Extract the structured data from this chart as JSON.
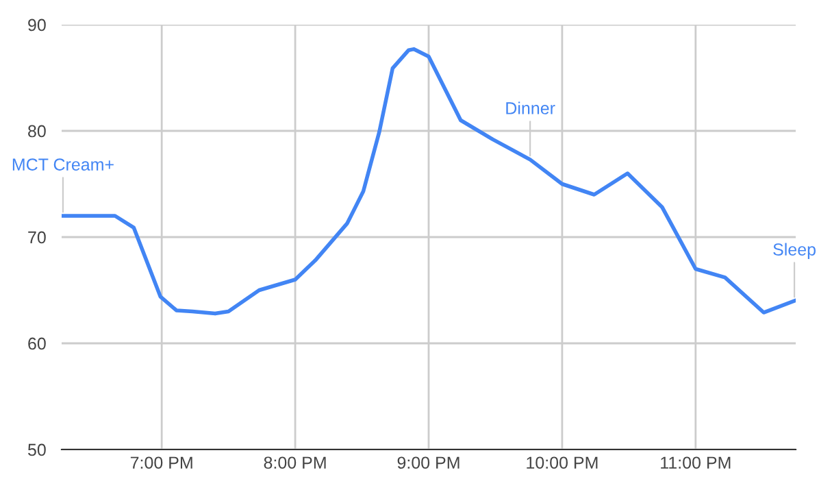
{
  "chart_data": {
    "type": "line",
    "x": [
      18.26,
      18.65,
      18.79,
      18.99,
      19.11,
      19.23,
      19.4,
      19.5,
      19.73,
      20.0,
      20.15,
      20.39,
      20.51,
      20.63,
      20.73,
      20.85,
      20.89,
      21.0,
      21.24,
      21.48,
      21.76,
      22.0,
      22.24,
      22.49,
      22.75,
      23.0,
      23.22,
      23.51,
      23.74
    ],
    "series": [
      {
        "color": "#4285f4",
        "values": [
          72.0,
          72.0,
          70.9,
          64.4,
          63.1,
          63.0,
          62.8,
          63.0,
          65.0,
          66.0,
          67.8,
          71.3,
          74.3,
          79.9,
          85.9,
          87.6,
          87.7,
          87.0,
          81.0,
          79.2,
          77.3,
          75.0,
          74.0,
          76.0,
          72.8,
          67.0,
          66.2,
          62.9,
          64.0
        ]
      }
    ],
    "annotations": [
      {
        "text": "MCT Cream+",
        "x": 18.26,
        "y": 72.0
      },
      {
        "text": "Dinner",
        "x": 21.76,
        "y": 77.3
      },
      {
        "text": "Sleep",
        "x": 23.74,
        "y": 64.0
      }
    ],
    "xlim": [
      18.25,
      23.75
    ],
    "ylim": [
      50,
      90
    ],
    "xticks": [
      {
        "value": 19,
        "label": "7:00 PM"
      },
      {
        "value": 20,
        "label": "8:00 PM"
      },
      {
        "value": 21,
        "label": "9:00 PM"
      },
      {
        "value": 22,
        "label": "10:00 PM"
      },
      {
        "value": 23,
        "label": "11:00 PM"
      }
    ],
    "yticks": [
      50,
      60,
      70,
      80,
      90
    ],
    "grid": true,
    "legend": false,
    "marker": "none",
    "line_style": "solid"
  }
}
